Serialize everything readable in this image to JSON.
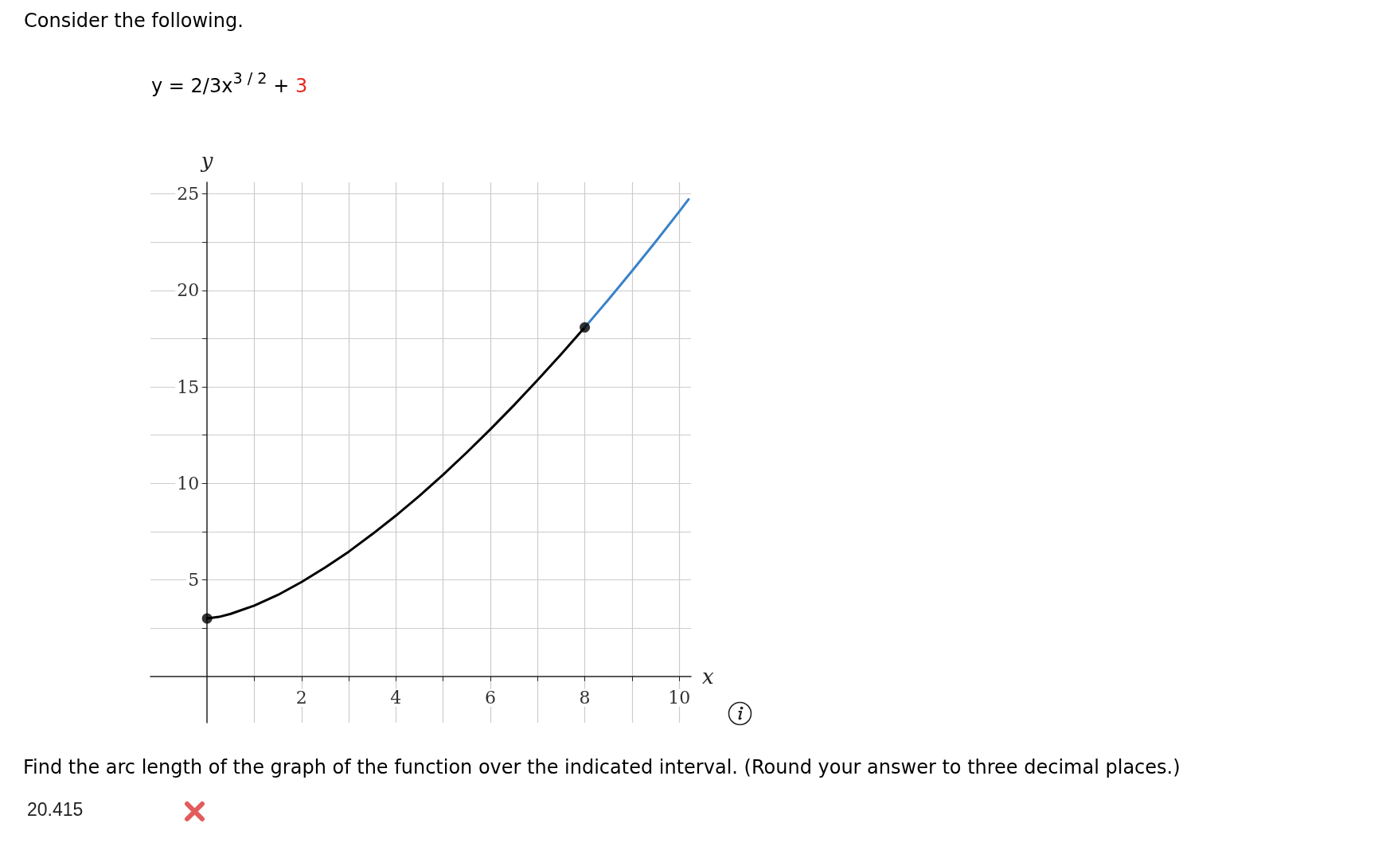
{
  "chart_data": {
    "type": "line",
    "title": "Consider the following.",
    "subtitle": "y = 2/3x$^{3 / 2}$ + 3",
    "xlabel": "x",
    "ylabel": "y",
    "annotations": [
      "Find the arc length of the graph of the function over the indicated interval. (Round your answer to three decimal places.)",
      "20.415"
    ],
    "series": [
      {
        "color": "#000000",
        "x": [
          0,
          0.25,
          0.5,
          1,
          1.5,
          2,
          2.5,
          3,
          3.5,
          4,
          4.5,
          5,
          5.5,
          6,
          6.5,
          7,
          7.5,
          8
        ],
        "values": [
          3,
          3.08,
          3.24,
          3.67,
          4.22,
          4.89,
          5.64,
          6.46,
          7.37,
          8.33,
          9.36,
          10.45,
          11.6,
          12.8,
          14.05,
          15.35,
          16.69,
          18.08
        ]
      },
      {
        "color": "#3a82c8",
        "x": [
          8,
          8.5,
          9,
          9.5,
          10,
          10.2
        ],
        "values": [
          18.08,
          19.52,
          21,
          22.52,
          24.08,
          24.72
        ]
      },
      {
        "type": "scatter",
        "marker": "circle",
        "color": "#000000",
        "x": [
          0,
          8
        ],
        "values": [
          3,
          18.08
        ]
      }
    ],
    "xlim": [
      -1.2,
      10.25
    ],
    "ylim": [
      -2.4,
      25.6
    ],
    "xticks": [
      {
        "value": 1,
        "label": null
      },
      2,
      {
        "value": 3,
        "label": null
      },
      4,
      {
        "value": 5,
        "label": null
      },
      6,
      {
        "value": 7,
        "label": null
      },
      8,
      {
        "value": 9,
        "label": null
      },
      10
    ],
    "yticks": [
      {
        "value": 2.5,
        "label": null
      },
      5,
      {
        "value": 7.5,
        "label": null
      },
      10,
      {
        "value": 12.5,
        "label": null
      },
      15,
      {
        "value": 17.5,
        "label": null
      },
      20,
      {
        "value": 22.5,
        "label": null
      },
      25
    ],
    "grid": true,
    "marker": "none",
    "line_style": "solid"
  }
}
